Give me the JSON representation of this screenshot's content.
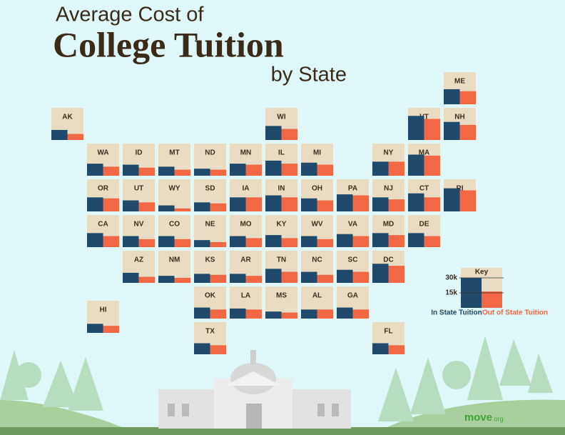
{
  "chart_data": {
    "type": "tile-map",
    "title": "Average Cost of",
    "title_main": "College Tuition",
    "subtitle": "by State",
    "categories": [
      "ME",
      "AK",
      "WI",
      "VT",
      "NH",
      "WA",
      "ID",
      "MT",
      "ND",
      "MN",
      "IL",
      "MI",
      "NY",
      "MA",
      "OR",
      "UT",
      "WY",
      "SD",
      "IA",
      "IN",
      "OH",
      "PA",
      "NJ",
      "CT",
      "RI",
      "CA",
      "NV",
      "CO",
      "NE",
      "MO",
      "KY",
      "WV",
      "VA",
      "MD",
      "DE",
      "AZ",
      "NM",
      "KS",
      "AR",
      "TN",
      "NC",
      "SC",
      "DC",
      "OK",
      "LA",
      "MS",
      "AL",
      "GA",
      "HI",
      "TX",
      "FL"
    ],
    "series": [
      {
        "name": "In State Tuition",
        "color": "#1f4a6b",
        "values": [
          15,
          10,
          14,
          24,
          18,
          12,
          11,
          9,
          7,
          12,
          15,
          13,
          14,
          21,
          14,
          11,
          6,
          9,
          14,
          16,
          13,
          17,
          14,
          18,
          23,
          14,
          11,
          11,
          7,
          11,
          12,
          11,
          13,
          14,
          14,
          10,
          7,
          9,
          9,
          14,
          11,
          13,
          19,
          11,
          10,
          7,
          9,
          11,
          9,
          11,
          11
        ]
      },
      {
        "name": "Out of State Tuition",
        "color": "#f26844",
        "values": [
          13,
          6,
          11,
          21,
          15,
          9,
          8,
          6,
          6,
          11,
          12,
          11,
          14,
          20,
          13,
          9,
          3,
          8,
          14,
          14,
          11,
          16,
          12,
          14,
          21,
          11,
          8,
          8,
          5,
          9,
          9,
          8,
          11,
          12,
          11,
          6,
          5,
          8,
          7,
          11,
          8,
          11,
          17,
          9,
          9,
          6,
          9,
          9,
          7,
          9,
          9
        ]
      }
    ],
    "ylim": [
      0,
      32
    ],
    "yticks": [
      {
        "value": 15,
        "label": "15k"
      },
      {
        "value": 30,
        "label": "30k"
      }
    ],
    "legend_title": "Key",
    "tile_color": "#e9dcc2",
    "logo": "move",
    "logo_suffix": ".org"
  }
}
